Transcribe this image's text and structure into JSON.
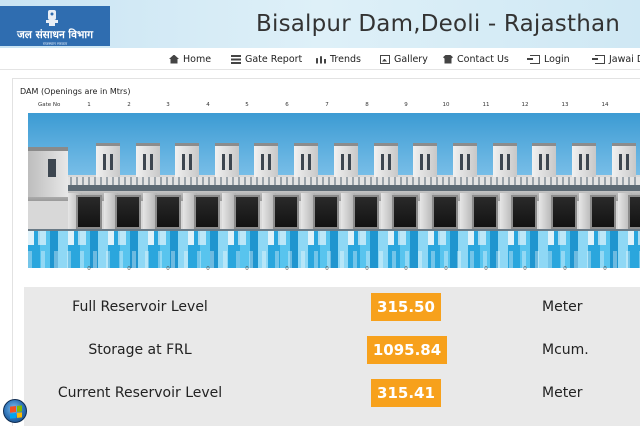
{
  "header": {
    "logo_text": "जल संसाधन विभाग",
    "logo_subtext": "राजस्थान सरकार",
    "title": "Bisalpur Dam,Deoli - Rajasthan"
  },
  "nav": {
    "items": [
      {
        "label": "Home",
        "icon": "home-icon"
      },
      {
        "label": "Gate Report",
        "icon": "list-icon"
      },
      {
        "label": "Trends",
        "icon": "bar-chart-icon"
      },
      {
        "label": "Gallery",
        "icon": "picture-icon"
      },
      {
        "label": "Contact Us",
        "icon": "phone-icon"
      },
      {
        "label": "Login",
        "icon": "login-icon"
      },
      {
        "label": "Jawai Da",
        "icon": "login-icon"
      }
    ]
  },
  "dam": {
    "title": "DAM (Openings are in Mtrs)",
    "gate_no_label": "Gate No",
    "gates": [
      "1",
      "2",
      "3",
      "4",
      "5",
      "6",
      "7",
      "8",
      "9",
      "10",
      "11",
      "12",
      "13",
      "14"
    ],
    "openings": [
      "0",
      "0",
      "0",
      "0",
      "0",
      "0",
      "0",
      "0",
      "0",
      "0",
      "0",
      "0",
      "0",
      "0"
    ]
  },
  "stats": [
    {
      "label": "Full Reservoir Level",
      "value": "315.50",
      "unit": "Meter"
    },
    {
      "label": "Storage at FRL",
      "value": "1095.84",
      "unit": "Mcum."
    },
    {
      "label": "Current Reservoir Level",
      "value": "315.41",
      "unit": "Meter"
    }
  ],
  "colors": {
    "header_bg": "#cfe8f4",
    "logo_bg": "#2f6db0",
    "value_badge": "#f7a11c",
    "stats_bg": "#e9e9e9",
    "water": "#2aa6dd"
  }
}
